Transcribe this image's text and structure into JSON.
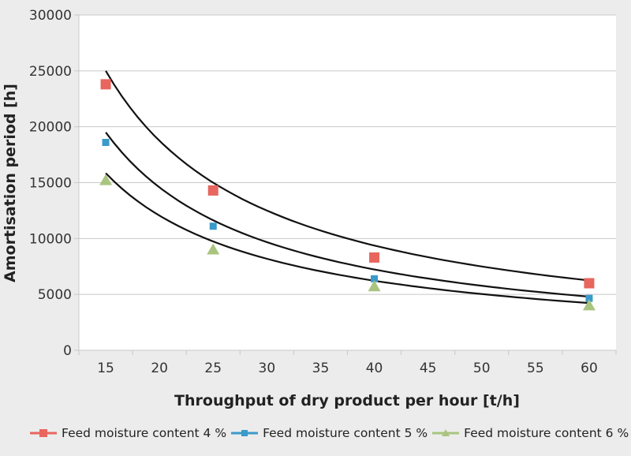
{
  "chart_data": {
    "type": "scatter",
    "title": "",
    "xlabel": "Throughput of dry product per hour [t/h]",
    "ylabel": "Amortisation period [h]",
    "x_tick_labels": [
      "15",
      "20",
      "25",
      "30",
      "35",
      "40",
      "45",
      "50",
      "55",
      "60"
    ],
    "y_tick_labels": [
      "0",
      "5000",
      "10000",
      "15000",
      "20000",
      "25000",
      "30000"
    ],
    "xlim": [
      12.5,
      62.5
    ],
    "ylim": [
      0,
      30000
    ],
    "grid": "horizontal",
    "legend_position": "bottom",
    "x": [
      15,
      25,
      40,
      60
    ],
    "series": [
      {
        "name": "Feed moisture content 4 %",
        "color": "#e8665e",
        "marker": "square",
        "values": [
          23800,
          14300,
          8300,
          6000
        ],
        "trendline": {
          "type": "power",
          "from": 15,
          "to": 60,
          "start": 25000,
          "end": 6250
        }
      },
      {
        "name": "Feed moisture content 5 %",
        "color": "#3a9ac9",
        "marker": "small-square",
        "values": [
          18600,
          11100,
          6400,
          4650
        ],
        "trendline": {
          "type": "power",
          "from": 15,
          "to": 60,
          "start": 19500,
          "end": 4800
        }
      },
      {
        "name": "Feed moisture content 6 %",
        "color": "#a9c47f",
        "marker": "triangle",
        "values": [
          15200,
          9000,
          5700,
          4000
        ],
        "trendline": {
          "type": "power",
          "from": 15,
          "to": 60,
          "start": 15850,
          "end": 4230
        }
      }
    ]
  }
}
